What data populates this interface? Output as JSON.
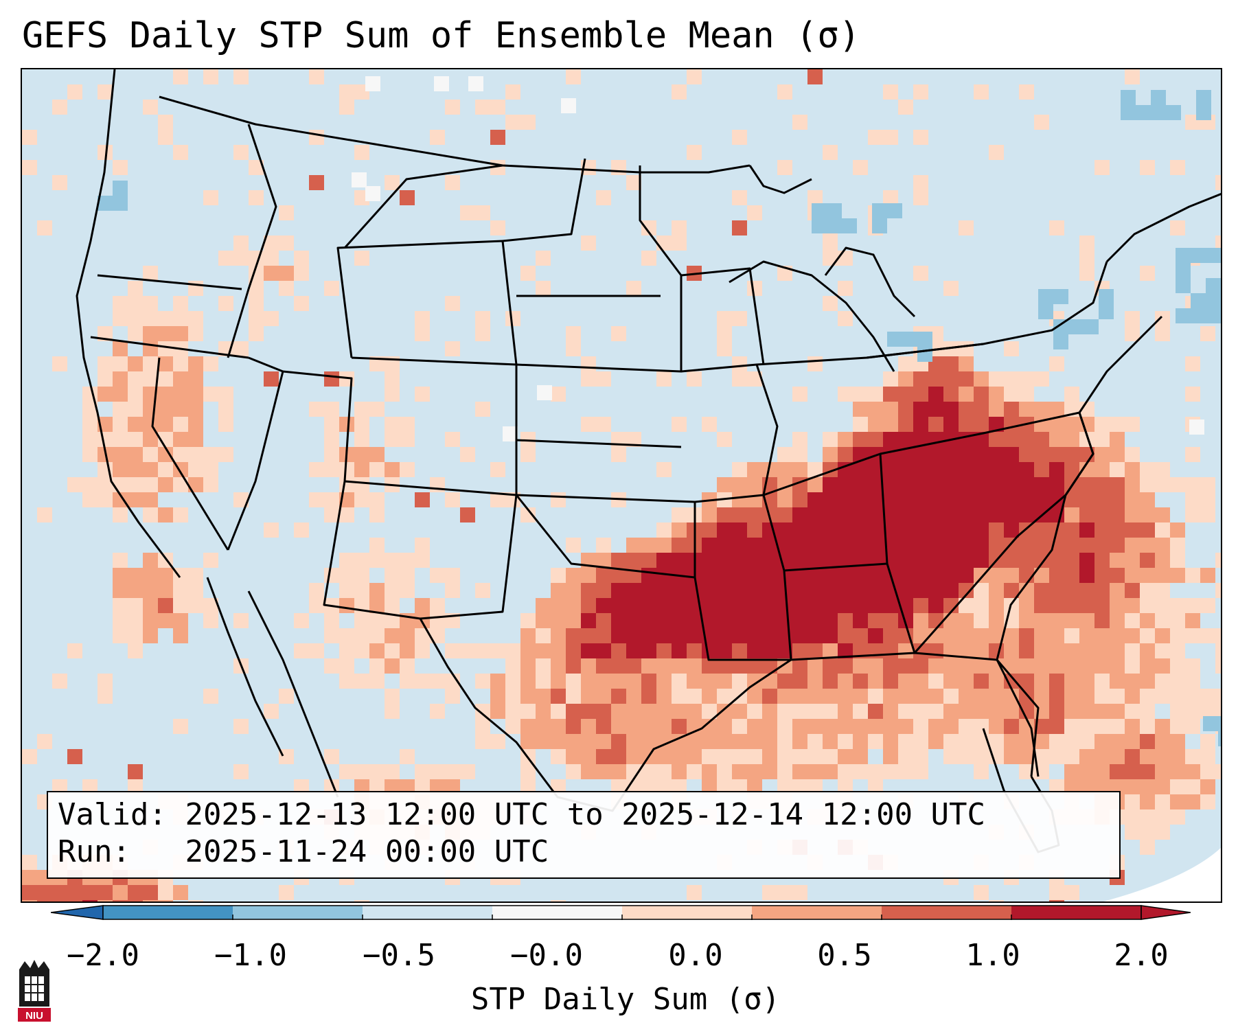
{
  "title": "GEFS Daily STP Sum of Ensemble Mean (σ)",
  "info": {
    "valid_label": "Valid:",
    "valid_value": "2025-12-13 12:00 UTC to 2025-12-14 12:00 UTC",
    "run_label": "Run:",
    "run_value": "2025-11-24 00:00 UTC"
  },
  "colorbar": {
    "label": "STP Daily Sum (σ)",
    "ticks": [
      "−2.0",
      "−1.0",
      "−0.5",
      "−0.0",
      "0.0",
      "0.5",
      "1.0",
      "2.0"
    ],
    "colors": [
      "#4393c3",
      "#92c5de",
      "#d1e5f0",
      "#f7f7f7",
      "#fddbc7",
      "#f4a582",
      "#d6604d",
      "#b2182b"
    ],
    "extend_low_color": "#2166ac",
    "extend_high_color": "#b2182b"
  },
  "logo": {
    "text": "NIU"
  },
  "colors": {
    "background": "#d1e5f0",
    "border": "#000000"
  }
}
